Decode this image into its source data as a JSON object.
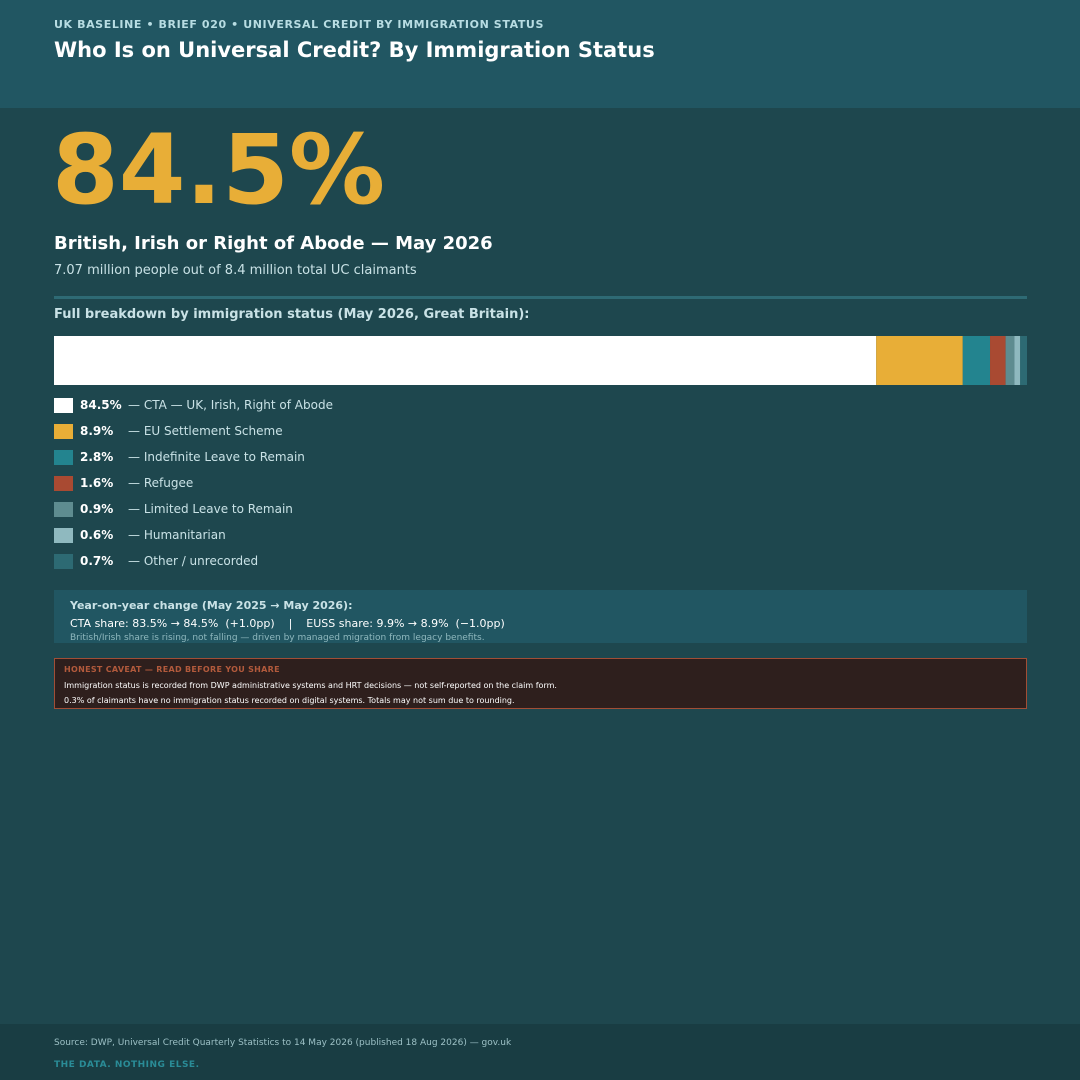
{
  "header": {
    "kicker": "UK BASELINE  •  BRIEF 020  •  UNIVERSAL CREDIT BY IMMIGRATION STATUS",
    "title": "Who Is on Universal Credit? By Immigration Status"
  },
  "hero": {
    "value": "84.5%",
    "label": "British, Irish or Right of Abode — May 2026",
    "sub": "7.07 million people out of 8.4 million total UC claimants"
  },
  "breakdown_title": "Full breakdown by immigration status (May 2026, Great Britain):",
  "chart_data": {
    "type": "bar",
    "orientation": "horizontal-stacked",
    "unit": "%",
    "title": "Full breakdown by immigration status (May 2026, Great Britain):",
    "series": [
      {
        "name": "CTA — UK, Irish, Right of Abode",
        "value": 84.5,
        "label": "84.5%",
        "color": "#ffffff"
      },
      {
        "name": "EU Settlement Scheme",
        "value": 8.9,
        "label": "8.9%",
        "color": "#e8ae37"
      },
      {
        "name": "Indefinite Leave to Remain",
        "value": 2.8,
        "label": "2.8%",
        "color": "#23848f"
      },
      {
        "name": "Refugee",
        "value": 1.6,
        "label": "1.6%",
        "color": "#a94a32"
      },
      {
        "name": "Limited Leave to Remain",
        "value": 0.9,
        "label": "0.9%",
        "color": "#5e8c90"
      },
      {
        "name": "Humanitarian",
        "value": 0.6,
        "label": "0.6%",
        "color": "#8fb9bf"
      },
      {
        "name": "Other / unrecorded",
        "value": 0.7,
        "label": "0.7%",
        "color": "#2d6a73"
      }
    ],
    "legend_position": "below"
  },
  "yoy": {
    "title": "Year-on-year change (May 2025 → May 2026):",
    "line": "CTA share: 83.5% → 84.5%  (+1.0pp)    |    EUSS share: 9.9% → 8.9%  (−1.0pp)",
    "note": "British/Irish share is rising, not falling — driven by managed migration from legacy benefits."
  },
  "caveat": {
    "title": "HONEST CAVEAT — READ BEFORE YOU SHARE",
    "line1": "Immigration status is recorded from DWP administrative systems and HRT decisions — not self-reported on the claim form.",
    "line2": "0.3% of claimants have no immigration status recorded on digital systems. Totals may not sum due to rounding."
  },
  "footer": {
    "source": "Source: DWP, Universal Credit Quarterly Statistics to 14 May 2026 (published 18 Aug 2026) — gov.uk",
    "tagline": "THE DATA. NOTHING ELSE."
  }
}
